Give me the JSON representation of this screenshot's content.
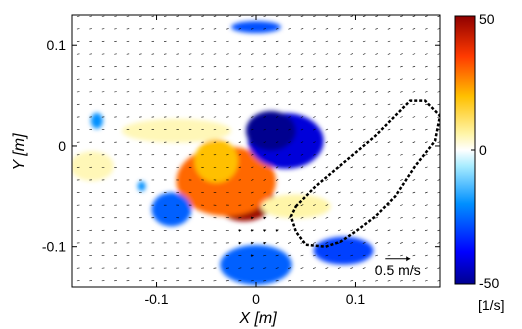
{
  "chart_data": {
    "type": "vector field with vorticity colormap",
    "xlabel": "X [m]",
    "ylabel": "Y [m]",
    "xlim": [
      -0.185,
      0.185
    ],
    "ylim": [
      -0.14,
      0.13
    ],
    "xticks": [
      -0.1,
      0,
      0.1
    ],
    "xtick_labels": [
      "-0.1",
      "0",
      "0.1"
    ],
    "yticks": [
      -0.1,
      0,
      0.1
    ],
    "ytick_labels": [
      "-0.1",
      "0",
      "0.1"
    ],
    "grid": false,
    "colorbar": {
      "min": -50,
      "max": 50,
      "ticks": [
        50,
        0,
        -50
      ],
      "tick_labels": [
        "50",
        "0",
        "-50"
      ],
      "unit": "[1/s]",
      "colormap": "jet"
    },
    "reference_vector": {
      "label": "0.5 m/s",
      "x": 0.13,
      "y": -0.112
    },
    "vortex_center": {
      "x": -0.01,
      "y": -0.05
    },
    "vorticity_patches": [
      {
        "x": -0.012,
        "y": -0.053,
        "rx": 0.03,
        "ry": 0.022,
        "value": 48
      },
      {
        "x": -0.03,
        "y": -0.035,
        "rx": 0.05,
        "ry": 0.035,
        "value": 30
      },
      {
        "x": -0.04,
        "y": -0.015,
        "rx": 0.022,
        "ry": 0.022,
        "value": 20
      },
      {
        "x": 0.03,
        "y": 0.005,
        "rx": 0.038,
        "ry": 0.028,
        "value": -42
      },
      {
        "x": 0.015,
        "y": 0.015,
        "rx": 0.025,
        "ry": 0.02,
        "value": -50
      },
      {
        "x": -0.085,
        "y": -0.063,
        "rx": 0.02,
        "ry": 0.017,
        "value": -26
      },
      {
        "x": 0.0,
        "y": -0.118,
        "rx": 0.036,
        "ry": 0.02,
        "value": -26
      },
      {
        "x": 0.088,
        "y": -0.104,
        "rx": 0.03,
        "ry": 0.014,
        "value": -30
      },
      {
        "x": 0.0,
        "y": 0.118,
        "rx": 0.025,
        "ry": 0.006,
        "value": -28
      },
      {
        "x": -0.08,
        "y": 0.015,
        "rx": 0.055,
        "ry": 0.012,
        "value": 5
      },
      {
        "x": -0.165,
        "y": -0.02,
        "rx": 0.022,
        "ry": 0.015,
        "value": 5
      },
      {
        "x": -0.16,
        "y": 0.025,
        "rx": 0.006,
        "ry": 0.008,
        "value": -20
      },
      {
        "x": -0.115,
        "y": -0.04,
        "rx": 0.004,
        "ry": 0.005,
        "value": -20
      },
      {
        "x": 0.04,
        "y": -0.06,
        "rx": 0.035,
        "ry": 0.012,
        "value": 6
      }
    ],
    "body_outline": [
      [
        0.04,
        -0.06
      ],
      [
        0.06,
        -0.04
      ],
      [
        0.09,
        -0.015
      ],
      [
        0.12,
        0.01
      ],
      [
        0.14,
        0.03
      ],
      [
        0.155,
        0.045
      ],
      [
        0.17,
        0.045
      ],
      [
        0.185,
        0.03
      ],
      [
        0.18,
        0.005
      ],
      [
        0.16,
        -0.02
      ],
      [
        0.14,
        -0.05
      ],
      [
        0.12,
        -0.07
      ],
      [
        0.1,
        -0.085
      ],
      [
        0.085,
        -0.095
      ],
      [
        0.07,
        -0.1
      ],
      [
        0.05,
        -0.098
      ],
      [
        0.04,
        -0.085
      ],
      [
        0.035,
        -0.07
      ]
    ]
  }
}
